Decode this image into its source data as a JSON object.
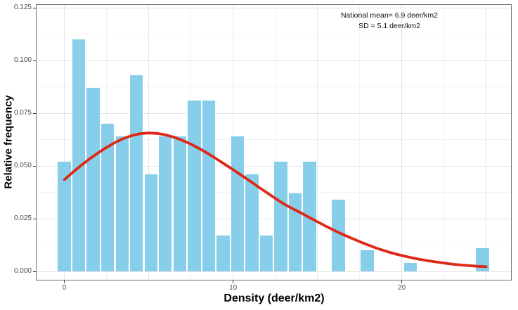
{
  "chart_data": {
    "type": "bar",
    "subtype": "histogram_with_density_curve",
    "title": "",
    "xlabel": "Density (deer/km2)",
    "ylabel": "Relative frequency",
    "annotation_lines": [
      "National mean= 6.9 deer/km2",
      "SD = 5.1 deer/km2"
    ],
    "national_mean": 6.9,
    "sd": 5.1,
    "x_ticks": [
      {
        "label": "0",
        "value": 0
      },
      {
        "label": "10",
        "value": 10
      },
      {
        "label": "20",
        "value": 20
      }
    ],
    "y_ticks": [
      {
        "label": "0.000",
        "value": 0
      },
      {
        "label": "0.025",
        "value": 0.025
      },
      {
        "label": "0.050",
        "value": 0.05
      },
      {
        "label": "0.075",
        "value": 0.075
      },
      {
        "label": "0.100",
        "value": 0.1
      },
      {
        "label": "0.125",
        "value": 0.125
      }
    ],
    "xlim": [
      -1.67,
      26.5
    ],
    "ylim": [
      -0.0043,
      0.1265
    ],
    "grid": {
      "on": true,
      "x_major": [
        0,
        5,
        10,
        15,
        20,
        25
      ],
      "x_minor": [
        2.5,
        7.5,
        12.5,
        17.5,
        22.5
      ],
      "y_major": [
        0,
        0.025,
        0.05,
        0.075,
        0.1,
        0.125
      ],
      "y_minor": [
        0.0125,
        0.0375,
        0.0625,
        0.0875,
        0.1125
      ]
    },
    "legend": "none",
    "bin_width": 0.855,
    "bars": [
      {
        "x": 0.0,
        "y": 0.052
      },
      {
        "x": 0.85,
        "y": 0.11
      },
      {
        "x": 1.71,
        "y": 0.087
      },
      {
        "x": 2.56,
        "y": 0.07
      },
      {
        "x": 3.42,
        "y": 0.064
      },
      {
        "x": 4.27,
        "y": 0.093
      },
      {
        "x": 5.13,
        "y": 0.046
      },
      {
        "x": 5.98,
        "y": 0.064
      },
      {
        "x": 6.84,
        "y": 0.064
      },
      {
        "x": 7.69,
        "y": 0.081
      },
      {
        "x": 8.55,
        "y": 0.081
      },
      {
        "x": 9.4,
        "y": 0.017
      },
      {
        "x": 10.26,
        "y": 0.064
      },
      {
        "x": 11.11,
        "y": 0.046
      },
      {
        "x": 11.97,
        "y": 0.017
      },
      {
        "x": 12.82,
        "y": 0.052
      },
      {
        "x": 13.68,
        "y": 0.037
      },
      {
        "x": 14.53,
        "y": 0.052
      },
      {
        "x": 16.24,
        "y": 0.034
      },
      {
        "x": 17.95,
        "y": 0.01
      },
      {
        "x": 20.51,
        "y": 0.004
      },
      {
        "x": 24.79,
        "y": 0.011
      }
    ],
    "density_curve": [
      [
        0.0,
        0.0435
      ],
      [
        0.5,
        0.047
      ],
      [
        1.0,
        0.0503
      ],
      [
        1.5,
        0.0534
      ],
      [
        2.0,
        0.0562
      ],
      [
        2.5,
        0.0588
      ],
      [
        3.0,
        0.0611
      ],
      [
        3.5,
        0.063
      ],
      [
        4.0,
        0.0644
      ],
      [
        4.5,
        0.0653
      ],
      [
        5.0,
        0.0656
      ],
      [
        5.5,
        0.0654
      ],
      [
        6.0,
        0.0647
      ],
      [
        6.5,
        0.0636
      ],
      [
        7.0,
        0.0621
      ],
      [
        7.5,
        0.0603
      ],
      [
        8.0,
        0.0582
      ],
      [
        8.5,
        0.0559
      ],
      [
        9.0,
        0.0534
      ],
      [
        9.5,
        0.0508
      ],
      [
        10.0,
        0.0482
      ],
      [
        10.5,
        0.0455
      ],
      [
        11.0,
        0.0428
      ],
      [
        11.5,
        0.04
      ],
      [
        12.0,
        0.0373
      ],
      [
        12.5,
        0.0346
      ],
      [
        13.0,
        0.032
      ],
      [
        13.5,
        0.0298
      ],
      [
        14.0,
        0.0278
      ],
      [
        14.5,
        0.0256
      ],
      [
        15.0,
        0.0235
      ],
      [
        15.5,
        0.0214
      ],
      [
        16.0,
        0.0194
      ],
      [
        16.5,
        0.0175
      ],
      [
        17.0,
        0.0158
      ],
      [
        17.5,
        0.0141
      ],
      [
        18.0,
        0.0125
      ],
      [
        18.5,
        0.011
      ],
      [
        19.0,
        0.0097
      ],
      [
        19.5,
        0.0085
      ],
      [
        20.0,
        0.0075
      ],
      [
        20.5,
        0.0066
      ],
      [
        21.0,
        0.0058
      ],
      [
        21.5,
        0.0051
      ],
      [
        22.0,
        0.0045
      ],
      [
        22.5,
        0.0039
      ],
      [
        23.0,
        0.0034
      ],
      [
        23.5,
        0.003
      ],
      [
        24.0,
        0.0027
      ],
      [
        24.5,
        0.0024
      ],
      [
        25.0,
        0.0022
      ]
    ],
    "colors": {
      "bar_fill": "#87CEEB",
      "bar_edge": "#ffffff",
      "curve": "#de2817",
      "grid_major": "#e5e5e5",
      "grid_minor": "#f2f2f2",
      "panel_border": "#6e6e6e",
      "tick": "#333333",
      "tick_label": "#4d4d4d",
      "text": "#000000"
    }
  }
}
